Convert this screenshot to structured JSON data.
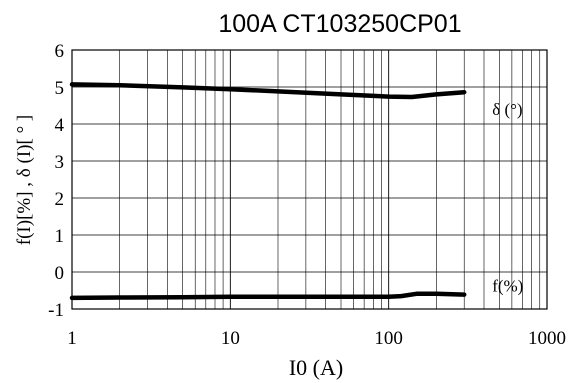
{
  "chart_data": {
    "type": "line",
    "title": "100A CT103250CP01",
    "xlabel": "I0 (A)",
    "ylabel": "f(I)[%] , δ (I)[ ° ]",
    "x_scale": "log",
    "xlim": [
      1,
      1000
    ],
    "ylim": [
      -1,
      6
    ],
    "x_ticks": [
      1,
      10,
      100,
      1000
    ],
    "x_tick_labels": [
      "1",
      "10",
      "100",
      "1000"
    ],
    "y_ticks": [
      -1,
      0,
      1,
      2,
      3,
      4,
      5,
      6
    ],
    "y_tick_labels": [
      "-1",
      "0",
      "1",
      "2",
      "3",
      "4",
      "5",
      "6"
    ],
    "grid": true,
    "series": [
      {
        "name": "δ (°)",
        "color": "#000000",
        "x": [
          1,
          2,
          5,
          10,
          20,
          50,
          100,
          140,
          200,
          300
        ],
        "y": [
          5.07,
          5.05,
          4.99,
          4.94,
          4.88,
          4.8,
          4.74,
          4.73,
          4.8,
          4.86
        ]
      },
      {
        "name": "f(%)",
        "color": "#000000",
        "x": [
          1,
          2,
          5,
          10,
          20,
          50,
          100,
          120,
          150,
          200,
          300
        ],
        "y": [
          -0.7,
          -0.69,
          -0.68,
          -0.67,
          -0.67,
          -0.67,
          -0.67,
          -0.65,
          -0.59,
          -0.59,
          -0.61
        ]
      }
    ]
  }
}
